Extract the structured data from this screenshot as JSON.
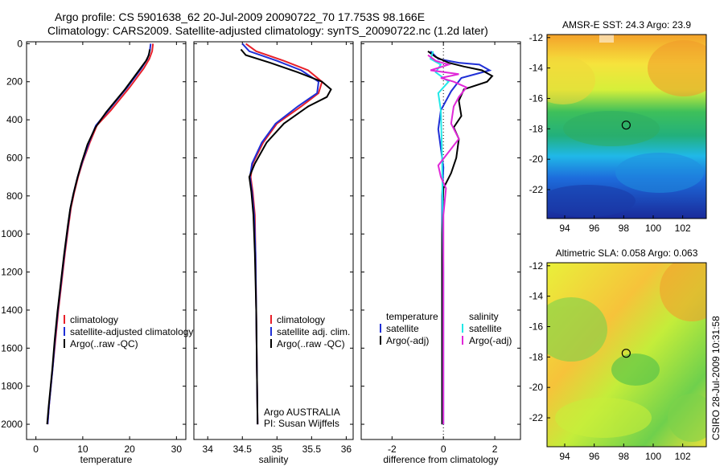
{
  "header": {
    "line1": "Argo profile: CS 5901638_62 20-Jul-2009 20090722_70 17.753S 98.166E",
    "line2": "Climatology: CARS2009. Satellite-adjusted climatology: synTS_20090722.nc (1.2d later)"
  },
  "credit": "CSIRO 28-Jul-2009 10:31:58",
  "colors": {
    "red": "#e8202a",
    "blue": "#1f2fd6",
    "black": "#000000",
    "cyan": "#22e8e8",
    "magenta": "#e028d8"
  },
  "chart_data": [
    {
      "type": "line",
      "id": "temperature",
      "xlabel": "temperature",
      "ylabel": "",
      "xlim": [
        -2,
        32
      ],
      "ylim": [
        2080,
        -10
      ],
      "xticks": [
        0,
        10,
        20,
        30
      ],
      "yticks": [
        0,
        200,
        400,
        600,
        800,
        1000,
        1200,
        1400,
        1600,
        1800,
        2000
      ],
      "legend": [
        "climatology",
        "satellite-adjusted climatology",
        "Argo(..raw -QC)"
      ],
      "legend_position": "lower-right",
      "series": [
        {
          "name": "climatology",
          "color": "red",
          "x": [
            25.0,
            24.8,
            24.2,
            23.0,
            20.0,
            16.0,
            13.0,
            11.5,
            10.0,
            9.0,
            8.2,
            7.5,
            7.0,
            6.2,
            5.5,
            4.8,
            4.2,
            3.6,
            3.2,
            2.8,
            2.5
          ],
          "y": [
            0,
            40,
            80,
            130,
            230,
            350,
            430,
            520,
            620,
            700,
            780,
            860,
            950,
            1100,
            1250,
            1400,
            1550,
            1700,
            1800,
            1900,
            2000
          ]
        },
        {
          "name": "satellite-adjusted climatology",
          "color": "blue",
          "x": [
            24.5,
            24.3,
            23.8,
            22.5,
            19.5,
            15.5,
            12.8,
            11.3,
            9.9,
            8.9,
            8.1,
            7.4,
            6.9,
            6.1,
            5.4,
            4.7,
            4.1,
            3.6,
            3.2,
            2.8,
            2.5
          ],
          "y": [
            0,
            40,
            80,
            130,
            230,
            350,
            430,
            520,
            620,
            700,
            780,
            860,
            950,
            1100,
            1250,
            1400,
            1550,
            1700,
            1800,
            1900,
            2000
          ]
        },
        {
          "name": "Argo(..raw -QC)",
          "color": "black",
          "x": [
            24.3,
            24.1,
            23.5,
            22.0,
            19.0,
            15.0,
            12.7,
            11.0,
            9.7,
            8.8,
            8.0,
            7.3,
            6.8,
            6.0,
            5.3,
            4.6,
            4.0,
            3.5,
            3.1,
            2.7,
            2.4
          ],
          "y": [
            30,
            60,
            90,
            140,
            240,
            360,
            440,
            530,
            630,
            710,
            790,
            870,
            960,
            1110,
            1260,
            1410,
            1560,
            1710,
            1810,
            1910,
            2000
          ]
        }
      ]
    },
    {
      "type": "line",
      "id": "salinity",
      "xlabel": "salinity",
      "ylabel": "",
      "xlim": [
        33.8,
        36.1
      ],
      "ylim": [
        2080,
        -10
      ],
      "xticks": [
        34,
        34.5,
        35,
        35.5,
        36
      ],
      "yticks": [
        0,
        200,
        400,
        600,
        800,
        1000,
        1200,
        1400,
        1600,
        1800,
        2000
      ],
      "legend": [
        "climatology",
        "satellite adj. clim.",
        "Argo(..raw -QC)"
      ],
      "legend_position": "lower-right",
      "annotation": [
        "Argo AUSTRALIA",
        "PI: Susan Wijffels"
      ],
      "series": [
        {
          "name": "climatology",
          "color": "red",
          "x": [
            34.55,
            34.7,
            35.1,
            35.45,
            35.65,
            35.6,
            35.35,
            35.0,
            34.8,
            34.65,
            34.62,
            34.65,
            34.68,
            34.69,
            34.7,
            34.71,
            34.72
          ],
          "y": [
            0,
            40,
            90,
            140,
            200,
            260,
            330,
            420,
            520,
            630,
            700,
            780,
            900,
            1100,
            1400,
            1700,
            2000
          ]
        },
        {
          "name": "satellite adj. clim.",
          "color": "blue",
          "x": [
            34.5,
            34.6,
            35.0,
            35.35,
            35.6,
            35.58,
            35.3,
            34.98,
            34.78,
            34.64,
            34.61,
            34.64,
            34.67,
            34.69,
            34.7,
            34.71,
            34.72
          ],
          "y": [
            0,
            40,
            90,
            140,
            200,
            260,
            330,
            420,
            520,
            630,
            700,
            780,
            900,
            1100,
            1400,
            1700,
            2000
          ]
        },
        {
          "name": "Argo(..raw -QC)",
          "color": "black",
          "x": [
            34.48,
            34.55,
            34.9,
            35.3,
            35.65,
            35.78,
            35.72,
            35.45,
            35.1,
            34.85,
            34.68,
            34.6,
            34.63,
            34.66,
            34.68,
            34.7,
            34.71,
            34.72
          ],
          "y": [
            30,
            60,
            100,
            150,
            200,
            240,
            280,
            330,
            420,
            520,
            630,
            700,
            780,
            900,
            1100,
            1400,
            1700,
            2000
          ]
        }
      ]
    },
    {
      "type": "line",
      "id": "difference",
      "xlabel": "difference from climatology",
      "ylabel": "",
      "xlim": [
        -3.2,
        3.0
      ],
      "ylim": [
        2080,
        -10
      ],
      "xticks": [
        -2,
        0,
        2
      ],
      "yticks": [
        0,
        200,
        400,
        600,
        800,
        1000,
        1200,
        1400,
        1600,
        1800,
        2000
      ],
      "legend": [
        "temperature",
        "satellite",
        "Argo(-adj)",
        "salinity",
        "satellite",
        "Argo(-adj)"
      ],
      "legend_position": "lower-center",
      "series": [
        {
          "name": "satellite",
          "color": "blue",
          "x": [
            -0.5,
            -0.2,
            0.6,
            1.4,
            1.8,
            0.7,
            0.3,
            -0.1,
            -0.2,
            -0.1,
            0.0,
            -0.05,
            -0.05,
            -0.05
          ],
          "y": [
            40,
            80,
            100,
            110,
            140,
            180,
            250,
            350,
            450,
            550,
            650,
            800,
            1200,
            2000
          ]
        },
        {
          "name": "Argo(-adj)",
          "color": "black",
          "x": [
            -0.6,
            -0.3,
            0.2,
            0.8,
            1.5,
            1.9,
            1.7,
            0.8,
            0.6,
            0.7,
            0.4,
            0.6,
            0.5,
            0.3,
            0.0,
            -0.05,
            -0.05
          ],
          "y": [
            40,
            70,
            100,
            120,
            140,
            170,
            200,
            240,
            300,
            380,
            440,
            500,
            600,
            680,
            760,
            1000,
            2000
          ]
        },
        {
          "name": "satellite",
          "color": "cyan",
          "x": [
            -0.4,
            -0.5,
            -0.1,
            -0.3,
            0.2,
            -0.2,
            -0.1,
            -0.05,
            0.0,
            0.0
          ],
          "y": [
            40,
            80,
            110,
            150,
            200,
            260,
            350,
            600,
            1200,
            2000
          ]
        },
        {
          "name": "Argo(-adj)",
          "color": "magenta",
          "x": [
            -0.6,
            -0.3,
            0.2,
            -0.5,
            0.6,
            -0.1,
            0.4,
            0.9,
            0.6,
            0.4,
            0.3,
            0.6,
            -0.2,
            -0.1,
            0.1,
            0.0,
            0.0
          ],
          "y": [
            60,
            90,
            110,
            140,
            160,
            180,
            200,
            230,
            280,
            330,
            420,
            500,
            640,
            700,
            760,
            900,
            2000
          ]
        }
      ]
    },
    {
      "type": "heatmap",
      "id": "sst-map",
      "title": "AMSR-E SST: 24.3 Argo: 23.9",
      "xlim": [
        92.8,
        103.6
      ],
      "ylim": [
        -23.9,
        -11.8
      ],
      "xticks": [
        94,
        96,
        98,
        100,
        102
      ],
      "yticks": [
        -12,
        -14,
        -16,
        -18,
        -20,
        -22
      ],
      "marker": {
        "x": 98.166,
        "y": -17.753
      }
    },
    {
      "type": "heatmap",
      "id": "sla-map",
      "title": "Altimetric SLA: 0.058 Argo: 0.063",
      "xlim": [
        92.8,
        103.6
      ],
      "ylim": [
        -23.9,
        -11.8
      ],
      "xticks": [
        94,
        96,
        98,
        100,
        102
      ],
      "yticks": [
        -12,
        -14,
        -16,
        -18,
        -20,
        -22
      ],
      "marker": {
        "x": 98.166,
        "y": -17.753
      }
    }
  ]
}
